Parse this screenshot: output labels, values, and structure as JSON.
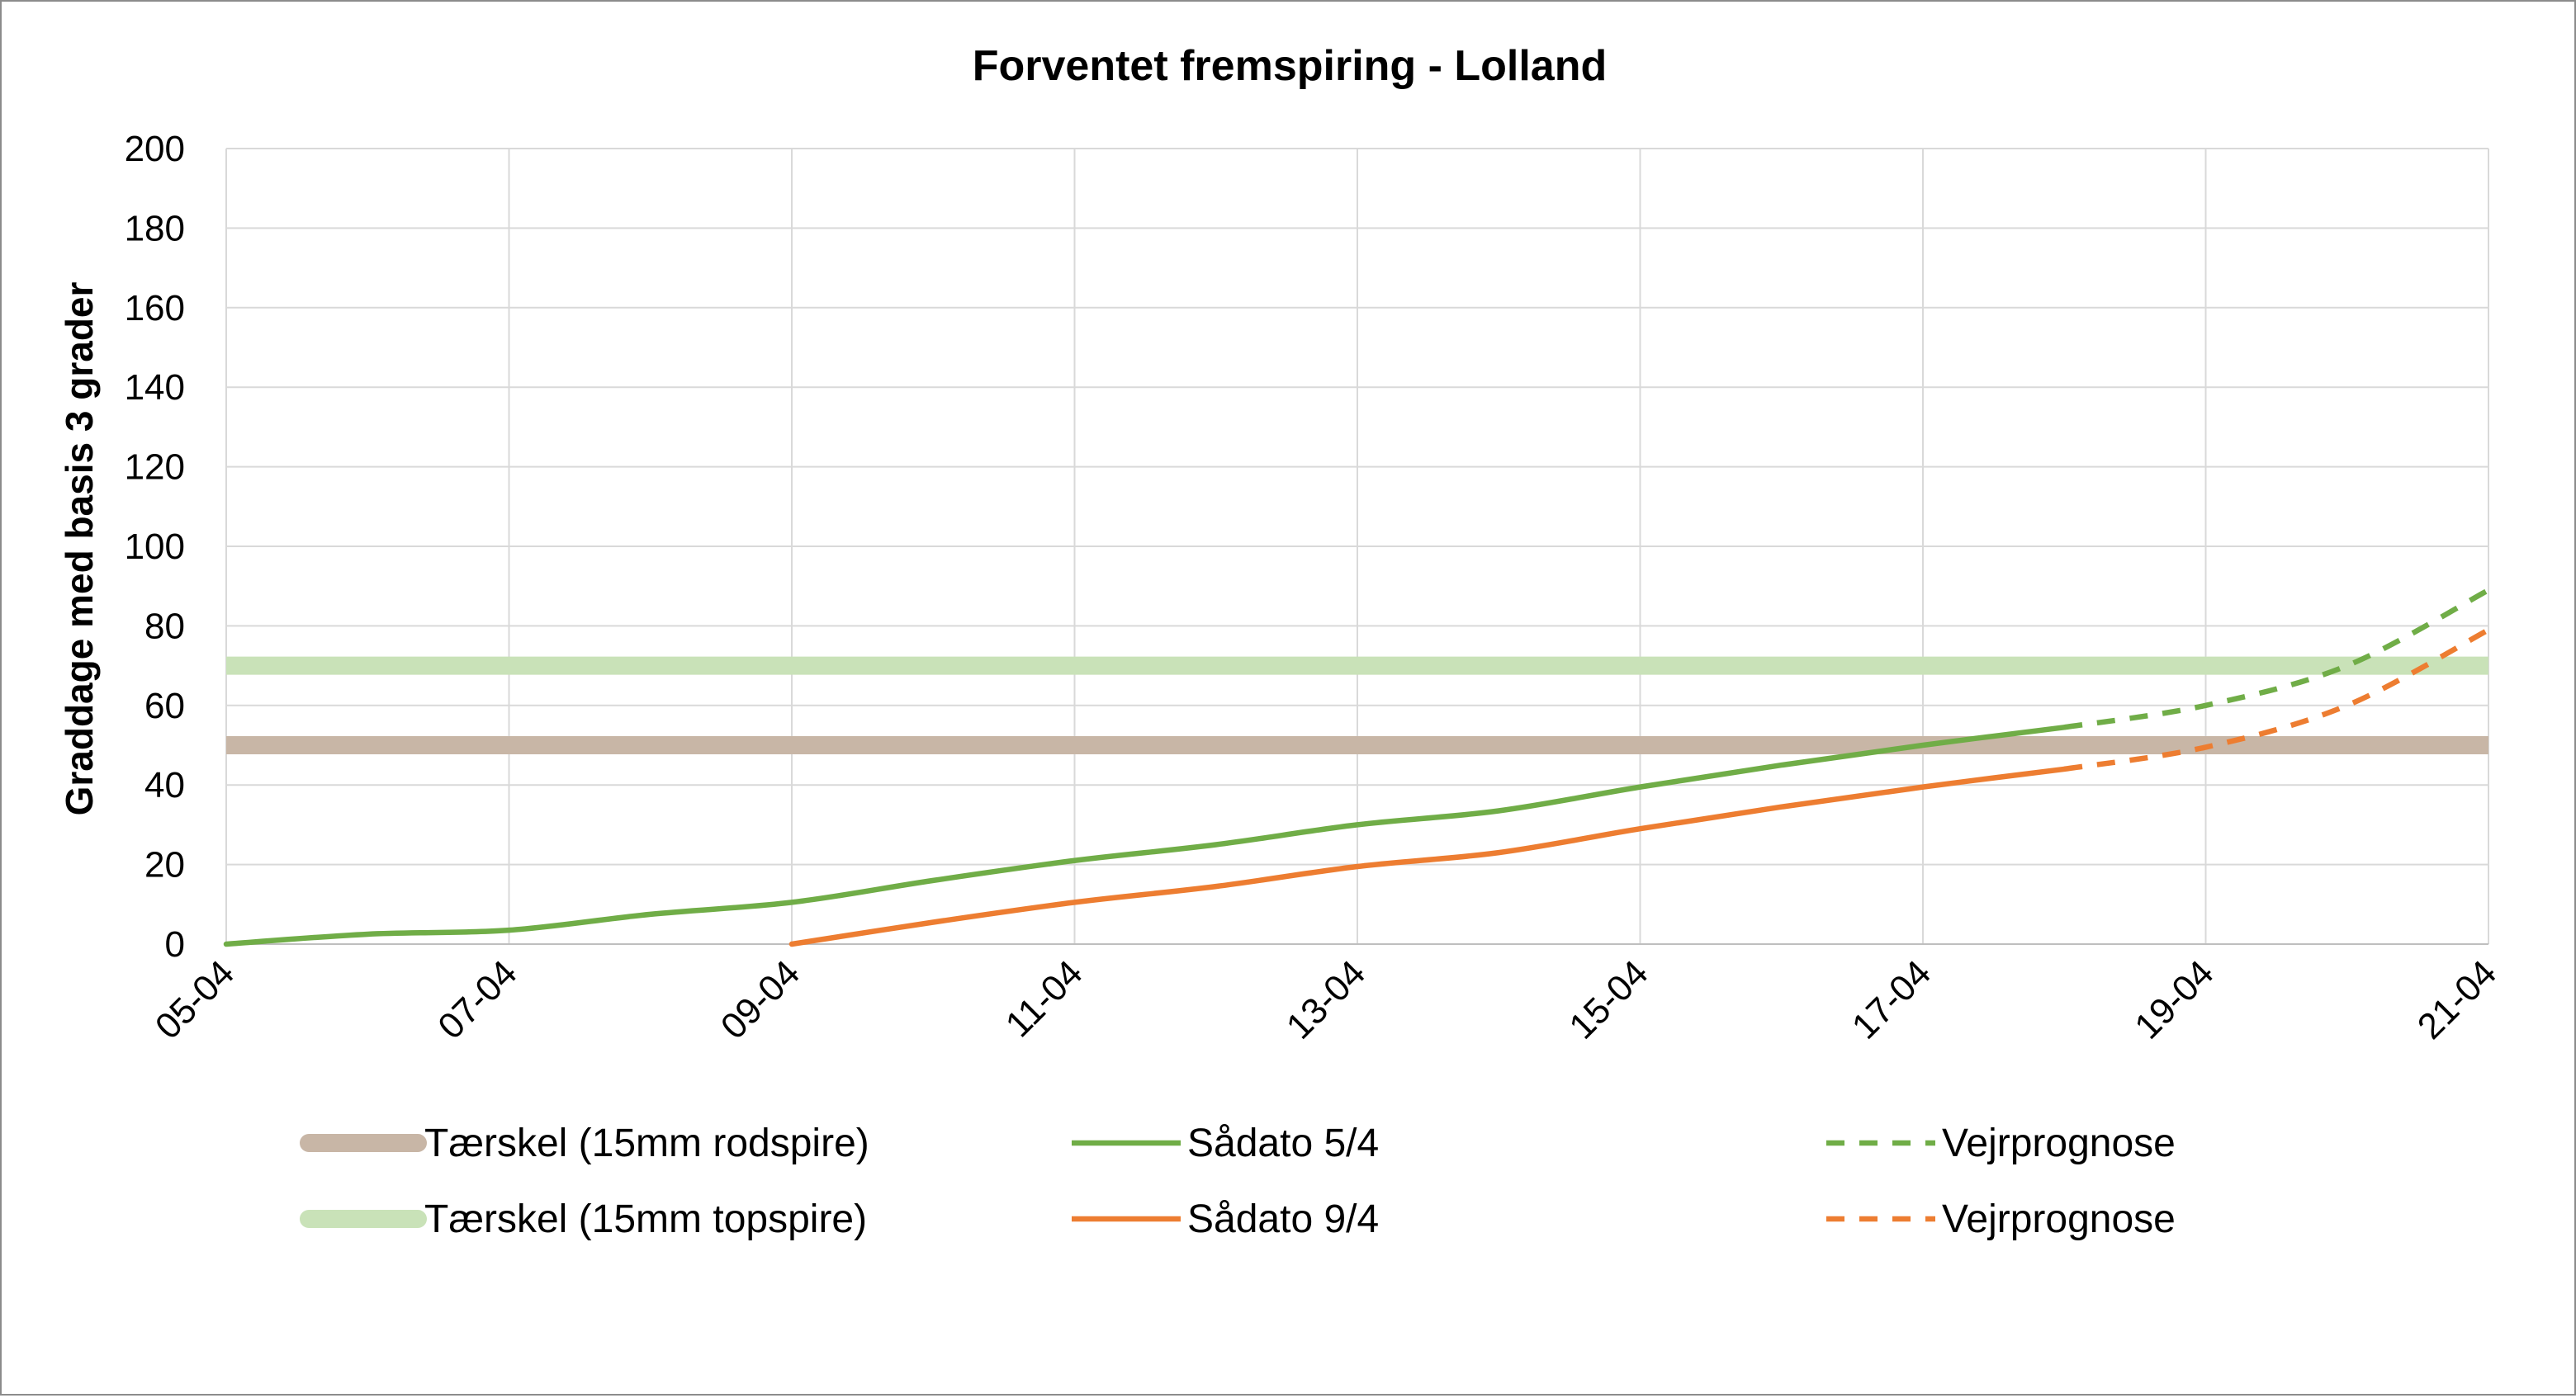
{
  "chart_data": {
    "type": "line",
    "title": "Forventet fremspiring - Lolland",
    "xlabel": "",
    "ylabel": "Graddage med basis 3 grader",
    "ylim": [
      0,
      200
    ],
    "yticks": [
      "0",
      "20",
      "40",
      "60",
      "80",
      "100",
      "120",
      "140",
      "160",
      "180",
      "200"
    ],
    "xlim": [
      "05-04",
      "21-04"
    ],
    "xticks": [
      "05-04",
      "07-04",
      "09-04",
      "11-04",
      "13-04",
      "15-04",
      "17-04",
      "19-04",
      "21-04"
    ],
    "grid": true,
    "legend_position": "bottom",
    "thresholds": [
      {
        "name": "Tærskel (15mm rodspire)",
        "y": 50,
        "color": "#c8b6a6"
      },
      {
        "name": "Tærskel (15mm topspire)",
        "y": 70,
        "color": "#c9e2b8"
      }
    ],
    "series": [
      {
        "name": "Sådato 5/4",
        "color": "#70ad47",
        "style": "solid",
        "x": [
          "05-04",
          "06-04",
          "07-04",
          "08-04",
          "09-04",
          "10-04",
          "11-04",
          "12-04",
          "13-04",
          "14-04",
          "15-04",
          "16-04",
          "17-04",
          "18-04"
        ],
        "values": [
          0,
          2.5,
          3.5,
          7.5,
          10.5,
          16,
          21,
          25,
          30,
          33.5,
          39.5,
          45,
          50,
          54.5
        ]
      },
      {
        "name": "Vejrprognose",
        "color": "#70ad47",
        "style": "dashed",
        "x": [
          "18-04",
          "19-04",
          "20-04",
          "21-04"
        ],
        "values": [
          54.5,
          60,
          70,
          89
        ]
      },
      {
        "name": "Sådato 9/4",
        "color": "#ed7d31",
        "style": "solid",
        "x": [
          "09-04",
          "10-04",
          "11-04",
          "12-04",
          "13-04",
          "14-04",
          "15-04",
          "16-04",
          "17-04",
          "18-04"
        ],
        "values": [
          0,
          5.5,
          10.5,
          14.5,
          19.5,
          23,
          29,
          34.5,
          39.5,
          44
        ]
      },
      {
        "name": "Vejrprognose",
        "color": "#ed7d31",
        "style": "dashed",
        "x": [
          "18-04",
          "19-04",
          "20-04",
          "21-04"
        ],
        "values": [
          44,
          49.5,
          60,
          79
        ]
      }
    ]
  }
}
